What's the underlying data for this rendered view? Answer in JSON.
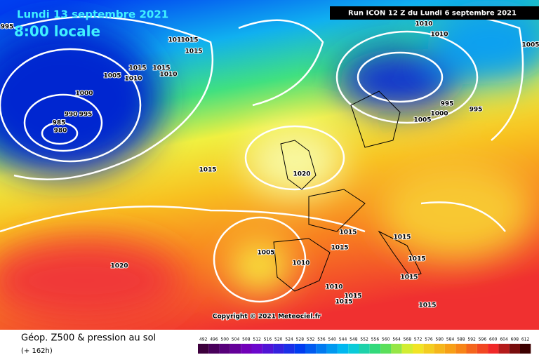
{
  "header": {
    "date": "Lundi 13 septembre 2021",
    "time": "8:00 locale",
    "run": "Run ICON 12 Z du Lundi 6 septembre 2021"
  },
  "copyright": "Copyright © 2021 Meteociel.fr",
  "footer": {
    "title": "Géop. Z500 & pression au sol",
    "lead": "(+ 162h)"
  },
  "isobar_labels": [
    995,
    1010,
    1015,
    1015,
    1005,
    1015,
    1010,
    1015,
    1010,
    1000,
    990,
    995,
    985,
    980,
    1015,
    1020,
    1020,
    1005,
    1010,
    1015,
    1015,
    1015,
    1015,
    1015,
    1010,
    1015,
    1015,
    1015,
    1010,
    1010,
    1005,
    995,
    1000,
    995,
    1005
  ],
  "scale": [
    492,
    496,
    500,
    504,
    508,
    512,
    516,
    520,
    524,
    528,
    532,
    536,
    540,
    544,
    548,
    552,
    556,
    560,
    564,
    568,
    572,
    576,
    580,
    584,
    588,
    592,
    596,
    600,
    604,
    608,
    612
  ]
}
